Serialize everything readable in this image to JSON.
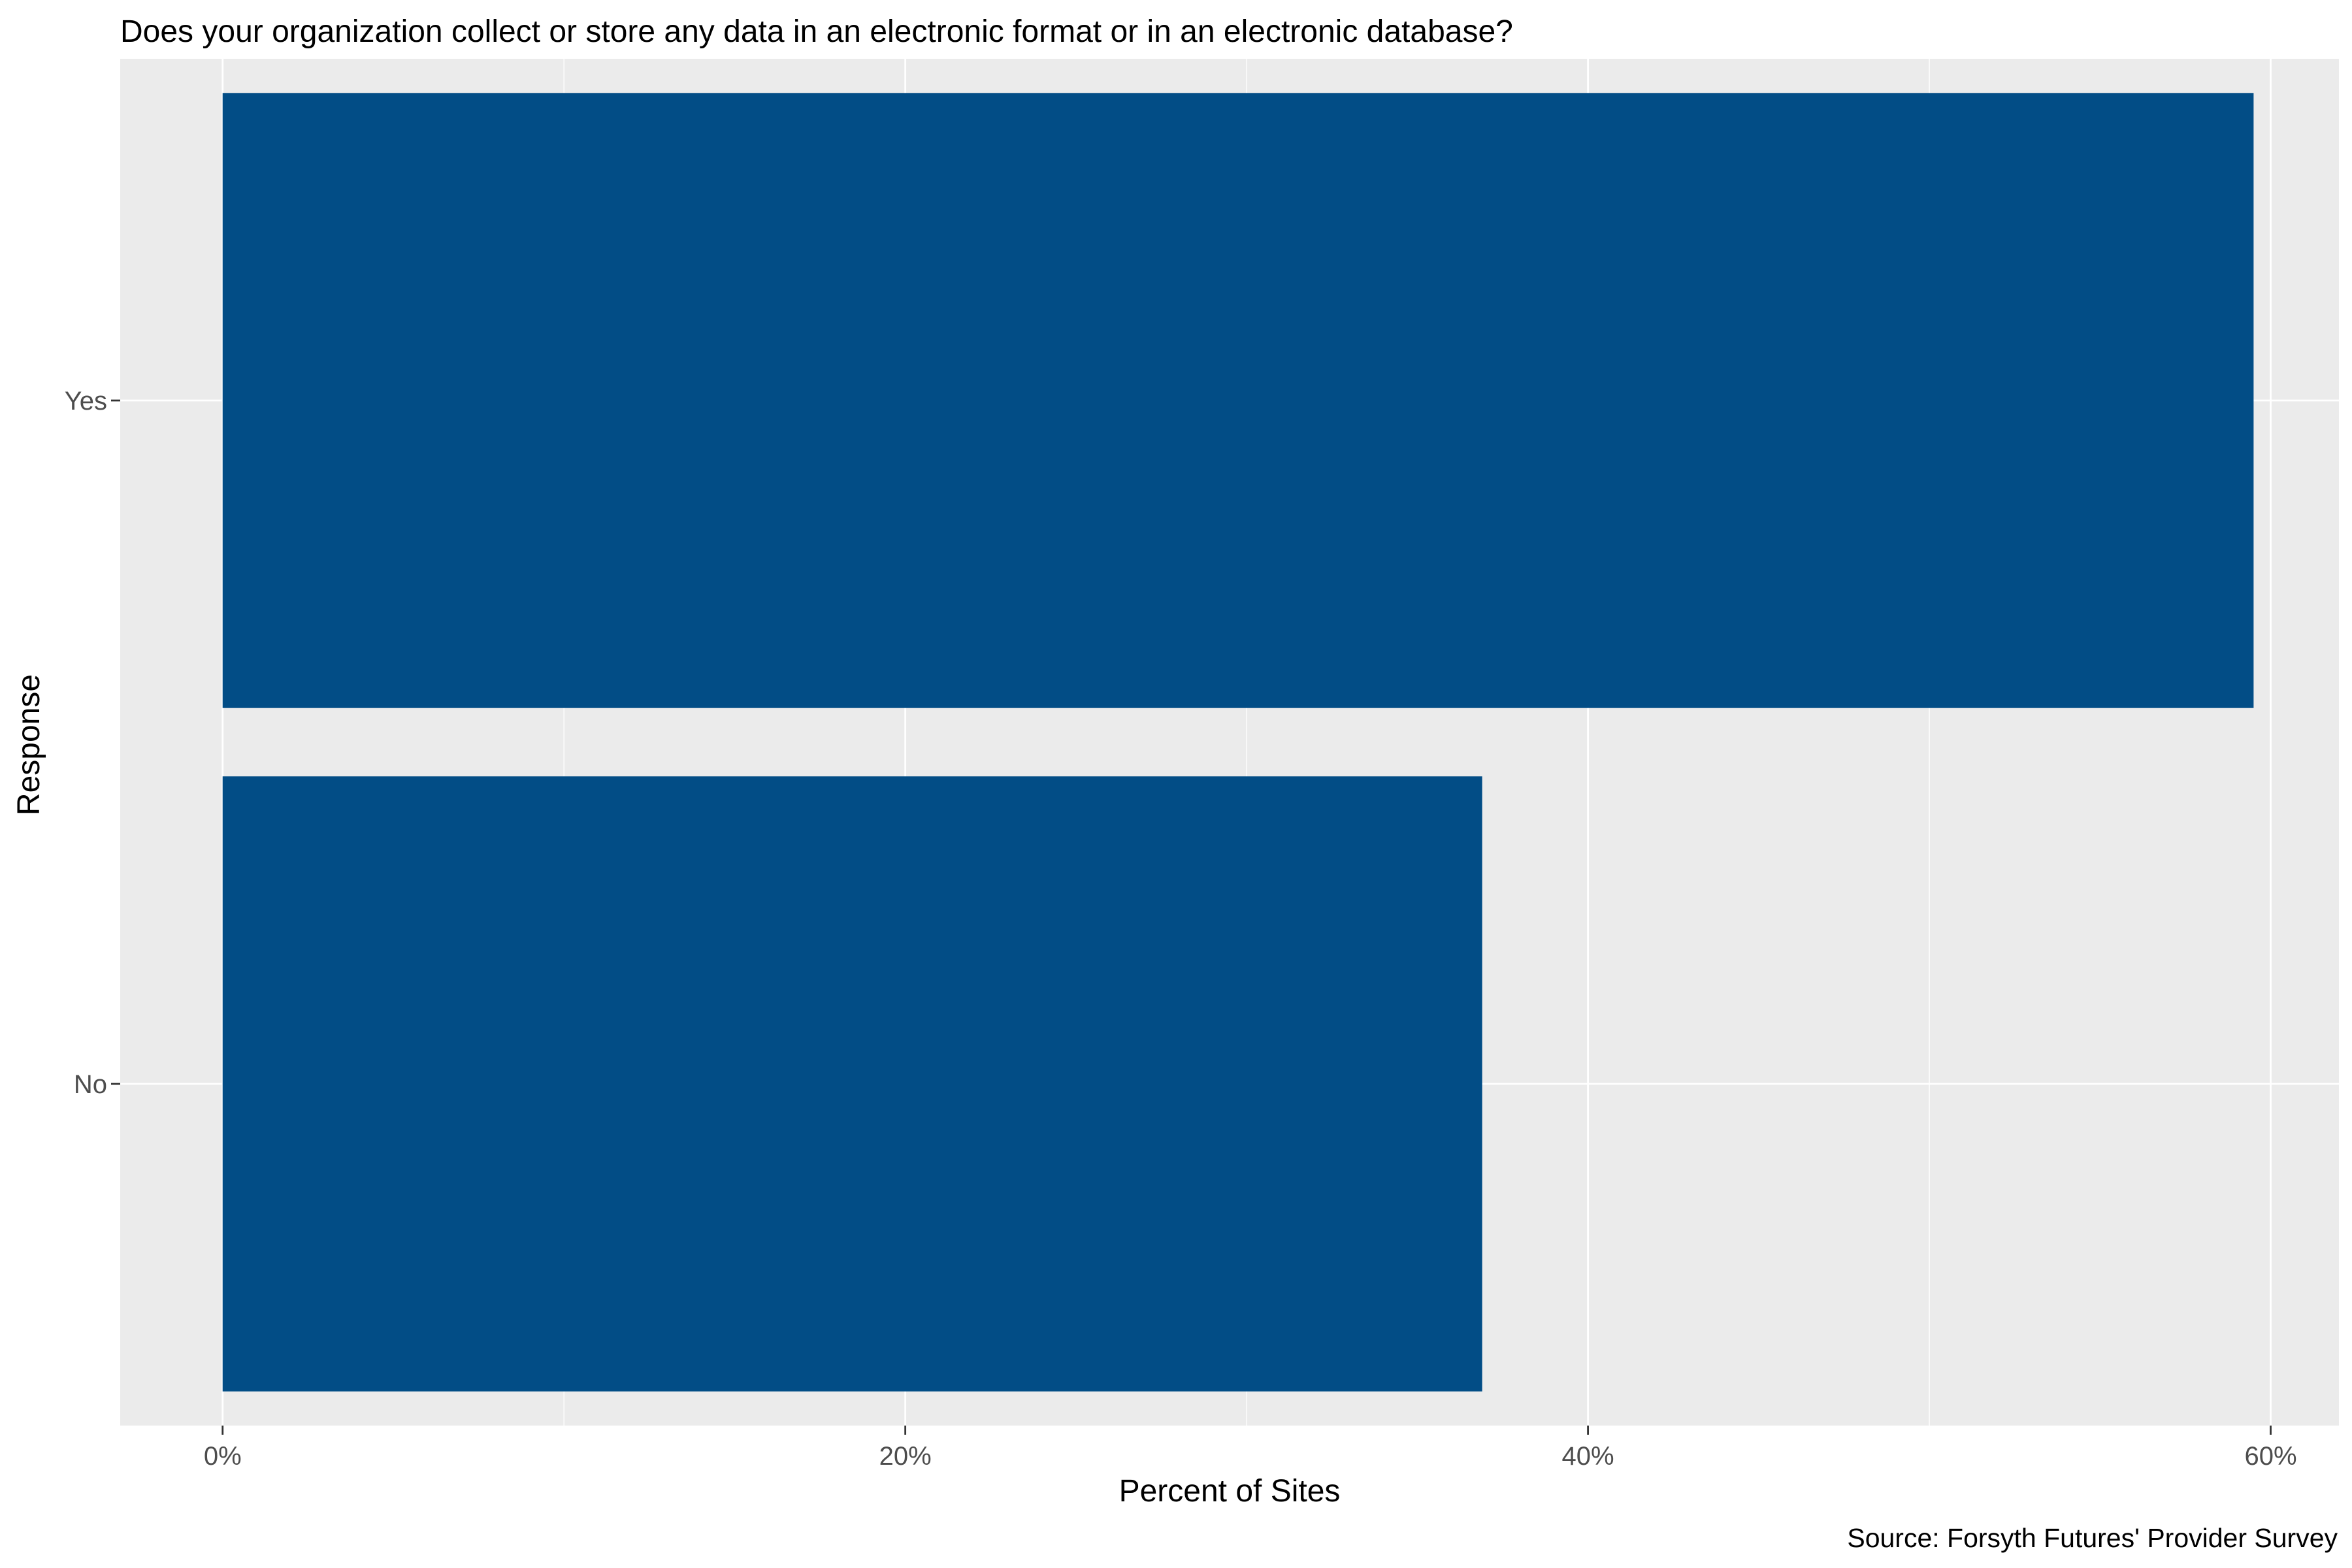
{
  "chart_data": {
    "type": "bar",
    "orientation": "horizontal",
    "title": "Does your organization collect or store any data in an electronic format or in an electronic database?",
    "caption": "Source: Forsyth Futures' Provider Survey",
    "xlabel": "Percent of Sites",
    "ylabel": "Response",
    "categories": [
      "Yes",
      "No"
    ],
    "values": [
      59.5,
      36.9
    ],
    "xlim": [
      -3,
      62
    ],
    "x_ticks": [
      0,
      20,
      40,
      60
    ],
    "x_tick_labels": [
      "0%",
      "20%",
      "40%",
      "60%"
    ],
    "grid": true,
    "legend": "none",
    "colors": {
      "bar": "#024d86",
      "panel": "#ebebeb",
      "grid": "#ffffff",
      "tick_text": "#4d4d4d",
      "tick_mark": "#333333"
    }
  }
}
